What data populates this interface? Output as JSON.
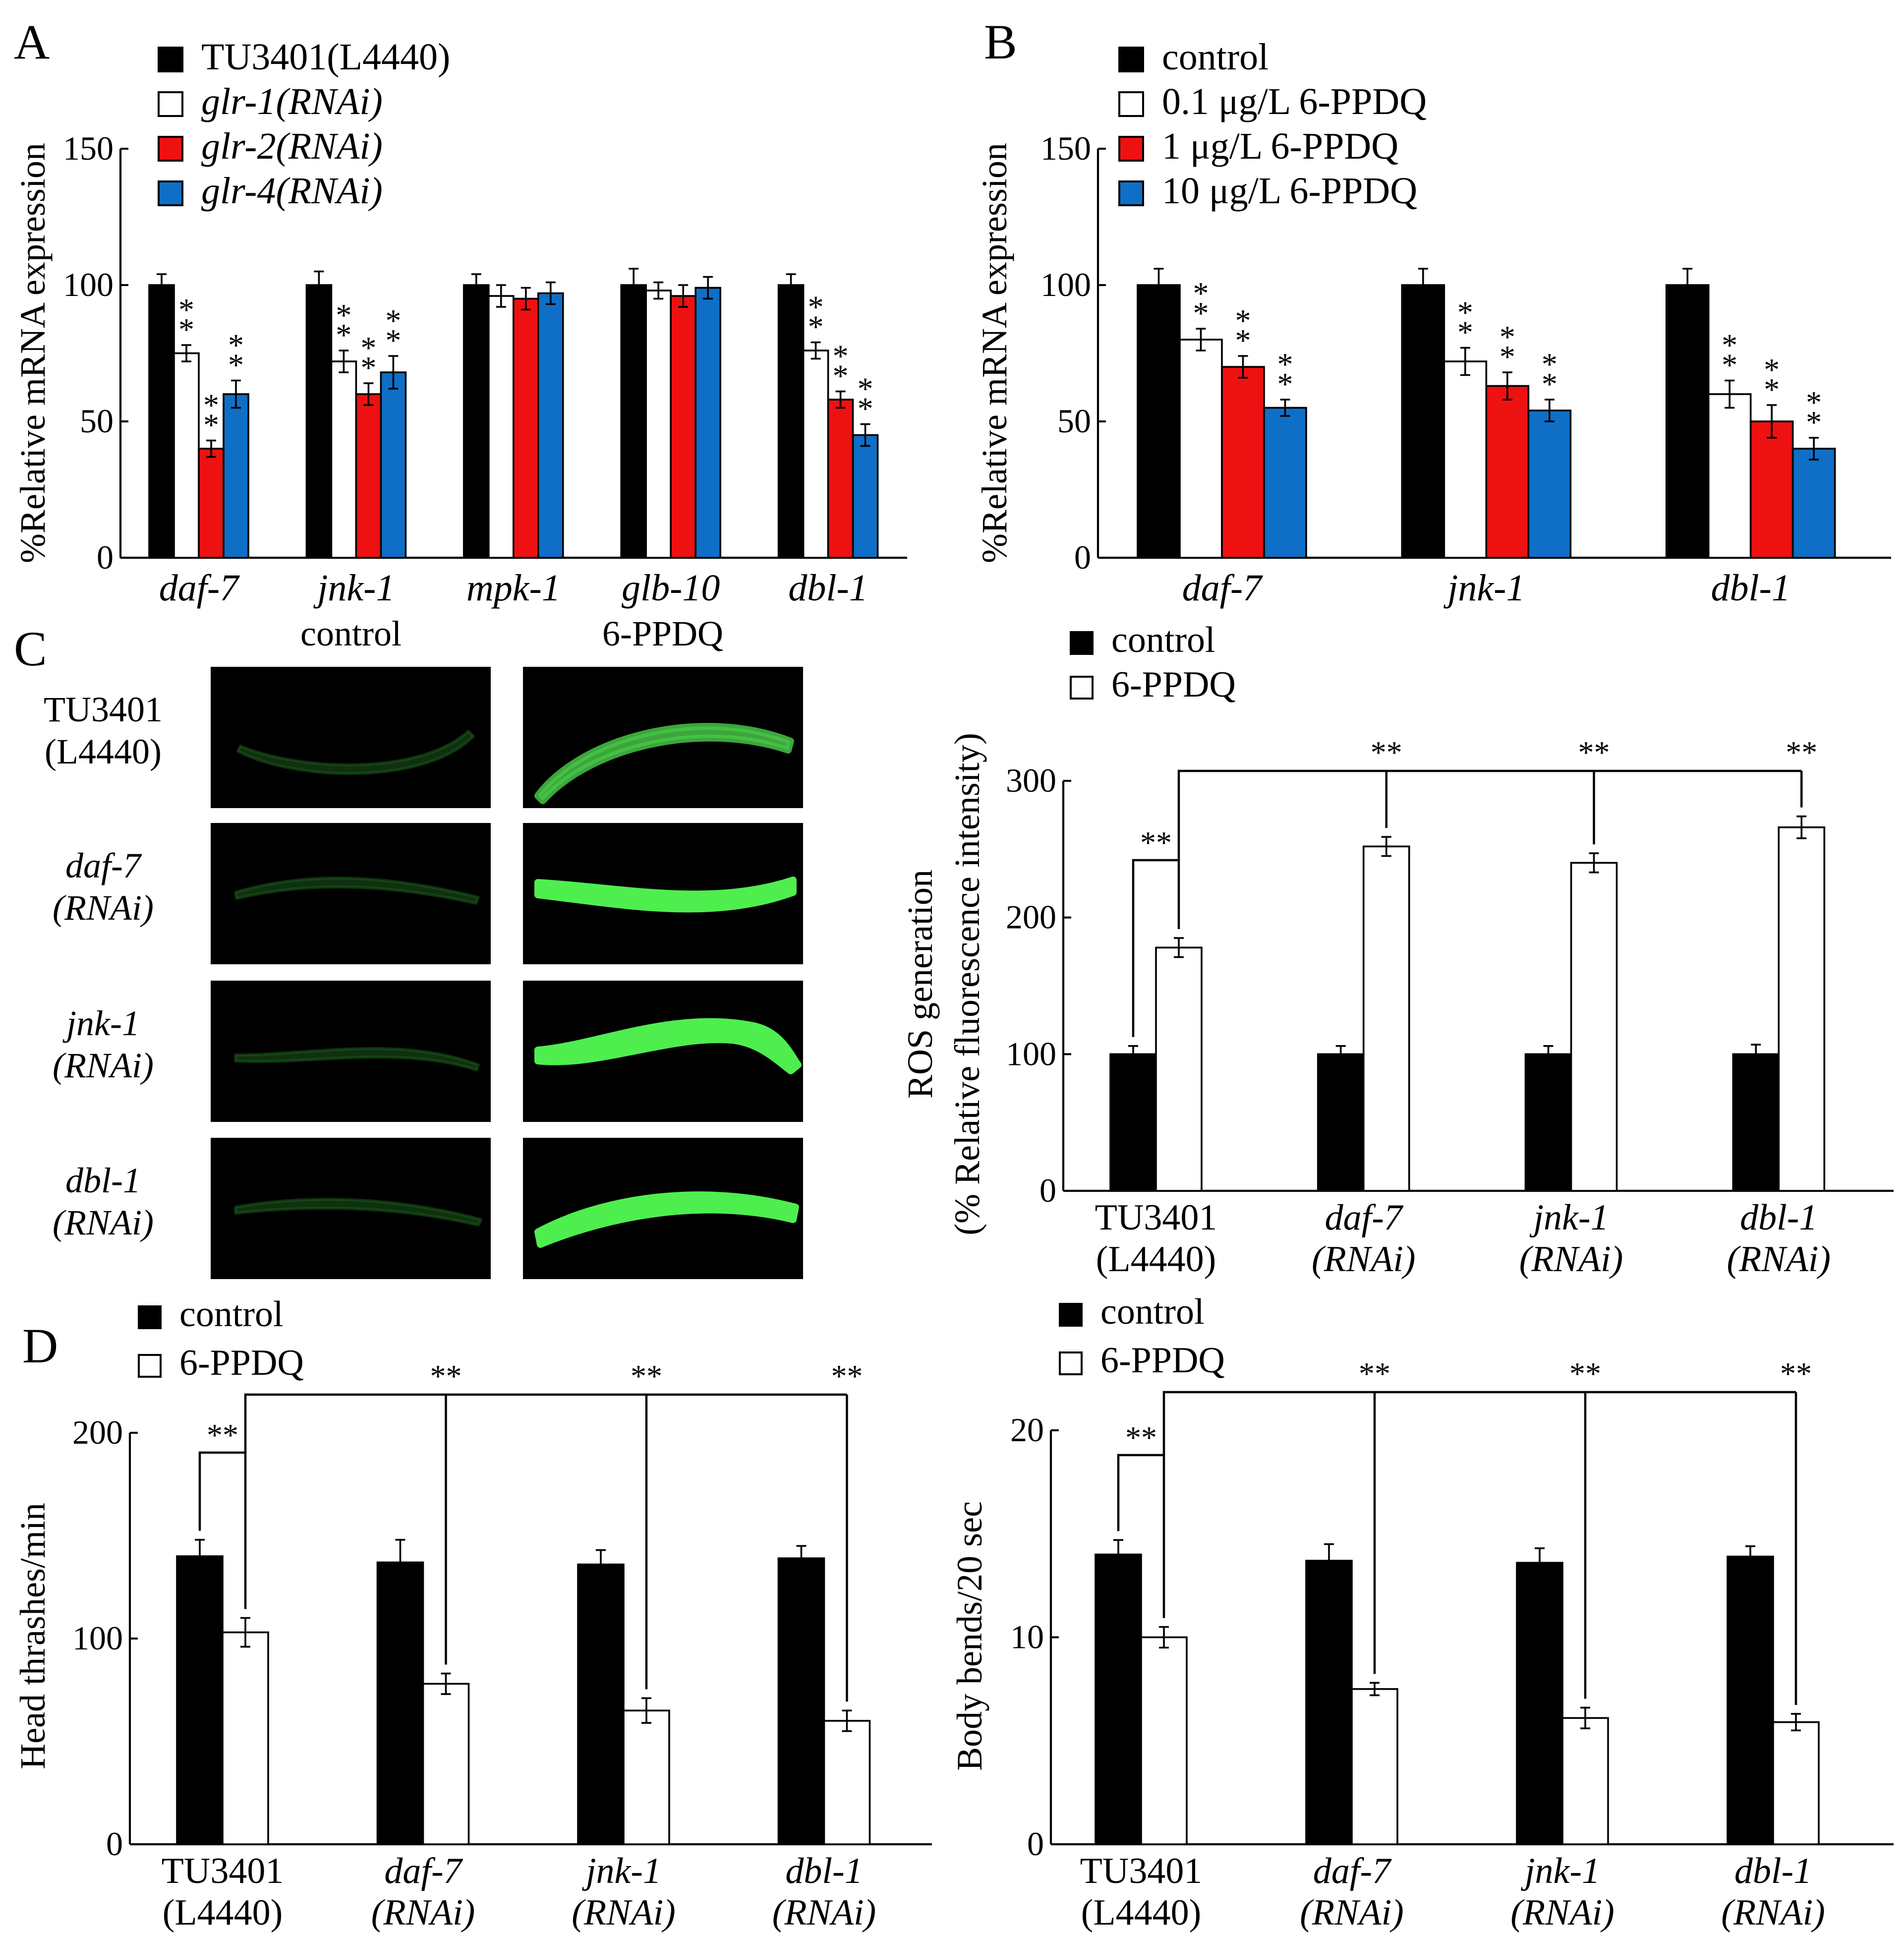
{
  "panels": {
    "A": {
      "letter": "A",
      "legend": [
        "TU3401(L4440)",
        "glr-1(RNAi)",
        "glr-2(RNAi)",
        "glr-4(RNAi)"
      ],
      "legend_italic": [
        false,
        true,
        true,
        true
      ]
    },
    "B": {
      "letter": "B",
      "legend": [
        "control",
        "0.1 μg/L 6-PPDQ",
        "1 μg/L 6-PPDQ",
        "10 μg/L 6-PPDQ"
      ],
      "legend_italic": [
        false,
        false,
        false,
        false
      ]
    },
    "C": {
      "letter": "C",
      "image_columns": [
        "control",
        "6-PPDQ"
      ],
      "image_rows": [
        {
          "line1": "TU3401",
          "line2": "(L4440)",
          "italic": false,
          "intensity_control": "faint",
          "intensity_ppdq": "moderate"
        },
        {
          "line1": "daf-7",
          "line2": "(RNAi)",
          "italic": true,
          "intensity_control": "faint",
          "intensity_ppdq": "bright"
        },
        {
          "line1": "jnk-1",
          "line2": "(RNAi)",
          "italic": true,
          "intensity_control": "faint",
          "intensity_ppdq": "bright"
        },
        {
          "line1": "dbl-1",
          "line2": "(RNAi)",
          "italic": true,
          "intensity_control": "faint",
          "intensity_ppdq": "bright"
        }
      ],
      "legend": [
        "control",
        "6-PPDQ"
      ]
    },
    "D": {
      "letter": "D",
      "legend": [
        "control",
        "6-PPDQ"
      ]
    }
  },
  "colors": {
    "black": "#000000",
    "white": "#ffffff",
    "red": "#ee1111",
    "blue": "#0f6fc6",
    "worm_faint": "#1c5a1c",
    "worm_moderate": "#46c346",
    "worm_bright": "#4eee4e"
  },
  "significance": "**",
  "chart_data": [
    {
      "id": "A",
      "type": "bar",
      "title": "",
      "xlabel": "",
      "ylabel": "%Relative  mRNA  expression",
      "ylim": [
        0,
        150
      ],
      "yticks": [
        0,
        50,
        100,
        150
      ],
      "categories": [
        "daf-7",
        "jnk-1",
        "mpk-1",
        "glb-10",
        "dbl-1"
      ],
      "categories_italic": true,
      "series": [
        {
          "name": "TU3401(L4440)",
          "color": "#000000",
          "values": [
            100,
            100,
            100,
            100,
            100
          ],
          "errors": [
            4,
            5,
            4,
            6,
            4
          ],
          "sig": [
            false,
            false,
            false,
            false,
            false
          ]
        },
        {
          "name": "glr-1(RNAi)",
          "color": "#ffffff",
          "values": [
            75,
            72,
            96,
            98,
            76
          ],
          "errors": [
            3,
            4,
            4,
            3,
            3
          ],
          "sig": [
            true,
            true,
            false,
            false,
            true
          ]
        },
        {
          "name": "glr-2(RNAi)",
          "color": "#ee1111",
          "values": [
            40,
            60,
            95,
            96,
            58
          ],
          "errors": [
            3,
            4,
            4,
            4,
            3
          ],
          "sig": [
            true,
            true,
            false,
            false,
            true
          ]
        },
        {
          "name": "glr-4(RNAi)",
          "color": "#0f6fc6",
          "values": [
            60,
            68,
            97,
            99,
            45
          ],
          "errors": [
            5,
            6,
            4,
            4,
            4
          ],
          "sig": [
            true,
            true,
            false,
            false,
            true
          ]
        }
      ]
    },
    {
      "id": "B",
      "type": "bar",
      "title": "",
      "xlabel": "",
      "ylabel": "%Relative  mRNA  expression",
      "ylim": [
        0,
        150
      ],
      "yticks": [
        0,
        50,
        100,
        150
      ],
      "categories": [
        "daf-7",
        "jnk-1",
        "dbl-1"
      ],
      "categories_italic": true,
      "series": [
        {
          "name": "control",
          "color": "#000000",
          "values": [
            100,
            100,
            100
          ],
          "errors": [
            6,
            6,
            6
          ],
          "sig": [
            false,
            false,
            false
          ]
        },
        {
          "name": "0.1 μg/L 6-PPDQ",
          "color": "#ffffff",
          "values": [
            80,
            72,
            60
          ],
          "errors": [
            4,
            5,
            5
          ],
          "sig": [
            true,
            true,
            true
          ]
        },
        {
          "name": "1 μg/L 6-PPDQ",
          "color": "#ee1111",
          "values": [
            70,
            63,
            50
          ],
          "errors": [
            4,
            5,
            6
          ],
          "sig": [
            true,
            true,
            true
          ]
        },
        {
          "name": "10 μg/L 6-PPDQ",
          "color": "#0f6fc6",
          "values": [
            55,
            54,
            40
          ],
          "errors": [
            3,
            4,
            4
          ],
          "sig": [
            true,
            true,
            true
          ]
        }
      ]
    },
    {
      "id": "C",
      "type": "bar",
      "title": "",
      "xlabel": "",
      "ylabel": "ROS generation",
      "ylabel2": "(% Relative fluorescence intensity)",
      "ylim": [
        0,
        300
      ],
      "yticks": [
        0,
        100,
        200,
        300
      ],
      "categories": [
        {
          "line1": "TU3401",
          "line2": "(L4440)",
          "italic": false
        },
        {
          "line1": "daf-7",
          "line2": "(RNAi)",
          "italic": true
        },
        {
          "line1": "jnk-1",
          "line2": "(RNAi)",
          "italic": true
        },
        {
          "line1": "dbl-1",
          "line2": "(RNAi)",
          "italic": true
        }
      ],
      "series": [
        {
          "name": "control",
          "color": "#000000",
          "values": [
            100,
            100,
            100,
            100
          ],
          "errors": [
            6,
            6,
            6,
            7
          ]
        },
        {
          "name": "6-PPDQ",
          "color": "#ffffff",
          "values": [
            178,
            252,
            240,
            266
          ],
          "errors": [
            7,
            7,
            7,
            8
          ]
        }
      ],
      "bracket_label": "**",
      "comparison_labels": [
        "**",
        "**",
        "**"
      ]
    },
    {
      "id": "D-left",
      "type": "bar",
      "title": "",
      "xlabel": "",
      "ylabel": "Head thrashes/min",
      "ylim": [
        0,
        200
      ],
      "yticks": [
        0,
        100,
        200
      ],
      "categories": [
        {
          "line1": "TU3401",
          "line2": "(L4440)",
          "italic": false
        },
        {
          "line1": "daf-7",
          "line2": "(RNAi)",
          "italic": true
        },
        {
          "line1": "jnk-1",
          "line2": "(RNAi)",
          "italic": true
        },
        {
          "line1": "dbl-1",
          "line2": "(RNAi)",
          "italic": true
        }
      ],
      "series": [
        {
          "name": "control",
          "color": "#000000",
          "values": [
            140,
            137,
            136,
            139
          ],
          "errors": [
            8,
            11,
            7,
            6
          ]
        },
        {
          "name": "6-PPDQ",
          "color": "#ffffff",
          "values": [
            103,
            78,
            65,
            60
          ],
          "errors": [
            7,
            5,
            6,
            5
          ]
        }
      ],
      "bracket_label": "**",
      "comparison_labels": [
        "**",
        "**",
        "**"
      ]
    },
    {
      "id": "D-right",
      "type": "bar",
      "title": "",
      "xlabel": "",
      "ylabel": "Body bends/20 sec",
      "ylim": [
        0,
        20
      ],
      "yticks": [
        0,
        10,
        20
      ],
      "categories": [
        {
          "line1": "TU3401",
          "line2": "(L4440)",
          "italic": false
        },
        {
          "line1": "daf-7",
          "line2": "(RNAi)",
          "italic": true
        },
        {
          "line1": "jnk-1",
          "line2": "(RNAi)",
          "italic": true
        },
        {
          "line1": "dbl-1",
          "line2": "(RNAi)",
          "italic": true
        }
      ],
      "series": [
        {
          "name": "control",
          "color": "#000000",
          "values": [
            14.0,
            13.7,
            13.6,
            13.9
          ],
          "errors": [
            0.7,
            0.8,
            0.7,
            0.5
          ]
        },
        {
          "name": "6-PPDQ",
          "color": "#ffffff",
          "values": [
            10.0,
            7.5,
            6.1,
            5.9
          ],
          "errors": [
            0.5,
            0.3,
            0.5,
            0.4
          ]
        }
      ],
      "bracket_label": "**",
      "comparison_labels": [
        "**",
        "**",
        "**"
      ]
    }
  ]
}
